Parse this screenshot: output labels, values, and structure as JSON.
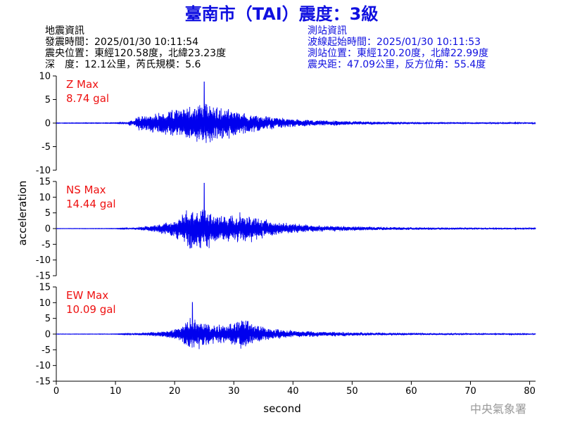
{
  "title": "臺南市（TAI）震度：3級",
  "event_info": {
    "heading": "地震資訊",
    "origin_time": "發震時間：2025/01/30 10:11:54",
    "epicenter": "震央位置：東經120.58度，北緯23.23度",
    "depth_magnitude": "深　度：12.1公里，芮氏規模：5.6"
  },
  "station_info": {
    "heading": "測站資訊",
    "wave_start": "波線起始時間：2025/01/30 10:11:53",
    "location": "測站位置：東經120.20度，北緯22.99度",
    "distance": "震央距：47.09公里，反方位角：55.4度"
  },
  "footer": "中央氣象署",
  "colors": {
    "trace": "#0000ee",
    "title": "#1010e0",
    "max_label": "#ee1111",
    "axis": "#000000"
  },
  "chart_data": {
    "type": "line",
    "xlabel": "second",
    "ylabel": "acceleration",
    "xlim": [
      0,
      81
    ],
    "xticks": [
      "0",
      "10",
      "20",
      "30",
      "40",
      "50",
      "60",
      "70",
      "80"
    ],
    "grid": false,
    "panels": [
      {
        "name": "Z",
        "label": "Z Max",
        "max_value": "8.74 gal",
        "ylim": [
          -10,
          10
        ],
        "yticks": [
          "10",
          "5",
          "0",
          "-5",
          "-10"
        ],
        "y_peak": 8.74,
        "envelope": [
          [
            0,
            0.08
          ],
          [
            10,
            0.1
          ],
          [
            12,
            0.3
          ],
          [
            12.6,
            1.3
          ],
          [
            13.0,
            0.5
          ],
          [
            13.6,
            2.2
          ],
          [
            15,
            2.8
          ],
          [
            17,
            3.4
          ],
          [
            19,
            4.2
          ],
          [
            21,
            5.2
          ],
          [
            23,
            6.4
          ],
          [
            25,
            7.2
          ],
          [
            26,
            6.6
          ],
          [
            28,
            5.4
          ],
          [
            30,
            4.6
          ],
          [
            32,
            3.5
          ],
          [
            34,
            2.8
          ],
          [
            36,
            2.2
          ],
          [
            38,
            1.8
          ],
          [
            40,
            1.3
          ],
          [
            45,
            1.0
          ],
          [
            50,
            0.65
          ],
          [
            55,
            0.5
          ],
          [
            60,
            0.42
          ],
          [
            70,
            0.34
          ],
          [
            81,
            0.28
          ]
        ]
      },
      {
        "name": "NS",
        "label": "NS Max",
        "max_value": "14.44 gal",
        "ylim": [
          -15,
          15
        ],
        "yticks": [
          "15",
          "10",
          "5",
          "0",
          "-5",
          "-10",
          "-15"
        ],
        "y_peak": 14.44,
        "envelope": [
          [
            0,
            0.08
          ],
          [
            10,
            0.1
          ],
          [
            12,
            0.3
          ],
          [
            13,
            0.6
          ],
          [
            15,
            1.2
          ],
          [
            17,
            2.0
          ],
          [
            19,
            3.4
          ],
          [
            21,
            6.0
          ],
          [
            22,
            9.0
          ],
          [
            23,
            10.5
          ],
          [
            24,
            9.0
          ],
          [
            25,
            10.8
          ],
          [
            26,
            8.6
          ],
          [
            28,
            7.0
          ],
          [
            30,
            6.5
          ],
          [
            31,
            7.4
          ],
          [
            33,
            6.6
          ],
          [
            35,
            4.4
          ],
          [
            37,
            3.4
          ],
          [
            40,
            2.3
          ],
          [
            45,
            1.6
          ],
          [
            50,
            1.1
          ],
          [
            55,
            0.85
          ],
          [
            60,
            0.7
          ],
          [
            70,
            0.55
          ],
          [
            81,
            0.45
          ]
        ]
      },
      {
        "name": "EW",
        "label": "EW Max",
        "max_value": "10.09 gal",
        "ylim": [
          -15,
          15
        ],
        "yticks": [
          "15",
          "10",
          "5",
          "0",
          "-5",
          "-10",
          "-15"
        ],
        "y_peak": 10.09,
        "envelope": [
          [
            0,
            0.08
          ],
          [
            10,
            0.1
          ],
          [
            12,
            0.3
          ],
          [
            13,
            0.5
          ],
          [
            15,
            0.9
          ],
          [
            17,
            1.3
          ],
          [
            19,
            2.0
          ],
          [
            21,
            3.6
          ],
          [
            22,
            6.6
          ],
          [
            23,
            8.2
          ],
          [
            24,
            6.6
          ],
          [
            25,
            6.4
          ],
          [
            26,
            5.6
          ],
          [
            27,
            4.4
          ],
          [
            29,
            4.8
          ],
          [
            31,
            7.2
          ],
          [
            32,
            7.8
          ],
          [
            33,
            5.2
          ],
          [
            35,
            3.5
          ],
          [
            37,
            2.6
          ],
          [
            40,
            1.8
          ],
          [
            45,
            1.3
          ],
          [
            50,
            0.95
          ],
          [
            55,
            0.75
          ],
          [
            60,
            0.62
          ],
          [
            70,
            0.48
          ],
          [
            81,
            0.4
          ]
        ]
      }
    ]
  }
}
